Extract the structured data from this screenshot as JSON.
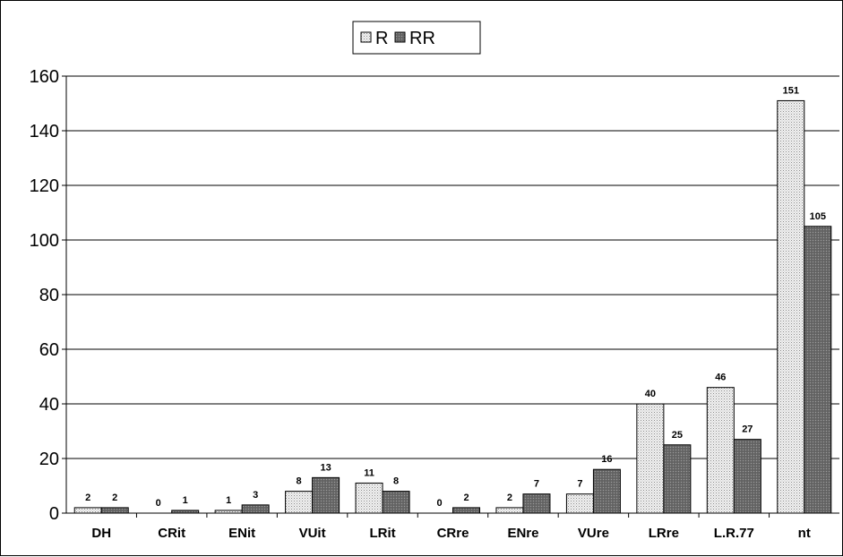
{
  "chart_data": {
    "type": "bar",
    "categories": [
      "DH",
      "CRit",
      "ENit",
      "VUit",
      "LRit",
      "CRre",
      "ENre",
      "VUre",
      "LRre",
      "L.R.77",
      "nt"
    ],
    "series": [
      {
        "name": "R",
        "values": [
          2,
          0,
          1,
          8,
          11,
          0,
          2,
          7,
          40,
          46,
          151
        ],
        "color": "#e6e6e6",
        "pattern": "light-dotted"
      },
      {
        "name": "RR",
        "values": [
          2,
          1,
          3,
          13,
          8,
          2,
          7,
          16,
          25,
          27,
          105
        ],
        "color": "#6e6e6e",
        "pattern": "dark-dotted"
      }
    ],
    "title": "",
    "xlabel": "",
    "ylabel": "",
    "ylim": [
      0,
      160
    ],
    "yticks": [
      0,
      20,
      40,
      60,
      80,
      100,
      120,
      140,
      160
    ],
    "grid": true,
    "legend_position": "top-center"
  }
}
